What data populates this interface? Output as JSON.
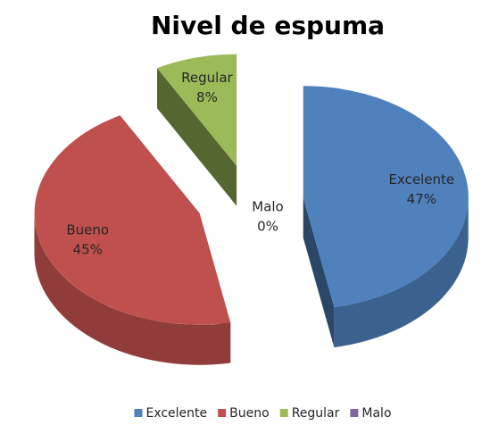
{
  "chart_data": {
    "type": "pie",
    "title": "Nivel de espuma",
    "categories": [
      "Excelente",
      "Bueno",
      "Regular",
      "Malo"
    ],
    "values": [
      47,
      45,
      8,
      0
    ],
    "value_labels": [
      "47%",
      "45%",
      "8%",
      "0%"
    ],
    "colors": [
      "#4f81bd",
      "#c0504d",
      "#9bbb59",
      "#8064a2"
    ],
    "legend": "bottom"
  }
}
